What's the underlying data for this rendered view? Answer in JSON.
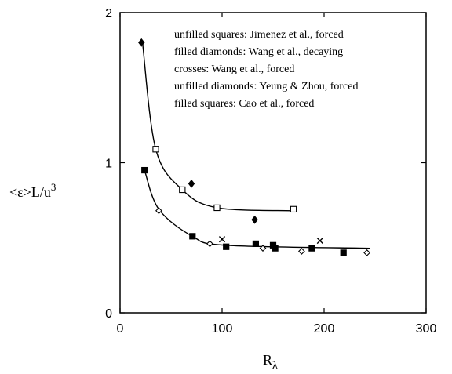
{
  "chart_data": {
    "type": "scatter",
    "xlim": [
      0,
      300
    ],
    "ylim": [
      0,
      2
    ],
    "xticks": [
      0,
      100,
      200,
      300
    ],
    "yticks": [
      0,
      1,
      2
    ],
    "ylabel": {
      "main": "<ε>L/u",
      "sup": "3"
    },
    "xlabel": {
      "main": "R",
      "sub": "λ"
    },
    "grid": false,
    "legend_placement": "top-right inside plot",
    "legend": [
      "unfilled squares: Jimenez et al., forced",
      "filled diamonds: Wang et al., decaying",
      "crosses: Wang et al., forced",
      "unfilled diamonds: Yeung & Zhou, forced",
      "filled squares: Cao et al., forced"
    ],
    "series": [
      {
        "name": "unfilled squares: Jimenez et al., forced",
        "marker": "square-open",
        "points": [
          [
            35,
            1.09
          ],
          [
            61,
            0.82
          ],
          [
            95,
            0.7
          ],
          [
            170,
            0.69
          ]
        ]
      },
      {
        "name": "filled diamonds: Wang et al., decaying",
        "marker": "diamond-filled",
        "points": [
          [
            21,
            1.8
          ],
          [
            70,
            0.86
          ],
          [
            132,
            0.62
          ]
        ]
      },
      {
        "name": "crosses: Wang et al., forced",
        "marker": "cross",
        "points": [
          [
            100,
            0.49
          ],
          [
            196,
            0.48
          ]
        ]
      },
      {
        "name": "unfilled diamonds: Yeung & Zhou, forced",
        "marker": "diamond-open",
        "points": [
          [
            38,
            0.68
          ],
          [
            88,
            0.46
          ],
          [
            140,
            0.43
          ],
          [
            178,
            0.41
          ],
          [
            242,
            0.4
          ]
        ]
      },
      {
        "name": "filled squares: Cao et al., forced",
        "marker": "square-filled",
        "points": [
          [
            24,
            0.95
          ],
          [
            71,
            0.51
          ],
          [
            104,
            0.44
          ],
          [
            133,
            0.46
          ],
          [
            150,
            0.45
          ],
          [
            152,
            0.43
          ],
          [
            188,
            0.43
          ],
          [
            219,
            0.4
          ]
        ]
      }
    ],
    "fit_curves": [
      {
        "asymptote": 0.68,
        "points": [
          [
            22,
            1.8
          ],
          [
            35,
            1.09
          ],
          [
            61,
            0.82
          ],
          [
            95,
            0.7
          ],
          [
            170,
            0.68
          ]
        ]
      },
      {
        "asymptote": 0.43,
        "points": [
          [
            24,
            0.95
          ],
          [
            38,
            0.69
          ],
          [
            71,
            0.51
          ],
          [
            104,
            0.45
          ],
          [
            245,
            0.43
          ]
        ]
      }
    ]
  }
}
